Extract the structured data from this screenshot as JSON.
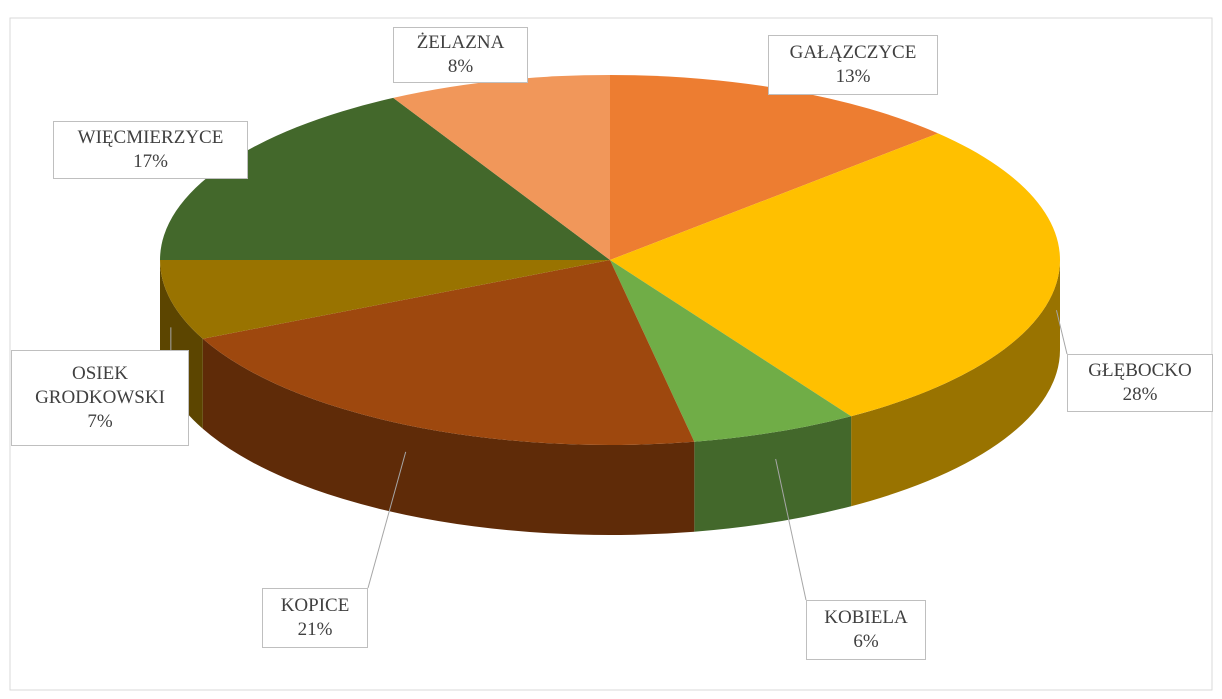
{
  "chart_data": {
    "type": "pie3d",
    "categories": [
      "GAŁĄZCZYCE",
      "GŁĘBOCKO",
      "KOBIELA",
      "KOPICE",
      "OSIEK GRODKOWSKI",
      "WIĘCMIERZYCE",
      "ŻELAZNA"
    ],
    "values": [
      13,
      28,
      6,
      21,
      7,
      17,
      8
    ],
    "value_labels": [
      "13%",
      "28%",
      "6%",
      "21%",
      "7%",
      "17%",
      "8%"
    ],
    "colors": [
      "#ed7d31",
      "#ffc000",
      "#70ad47",
      "#9e480e",
      "#997300",
      "#43682b",
      "#f1975a"
    ]
  }
}
